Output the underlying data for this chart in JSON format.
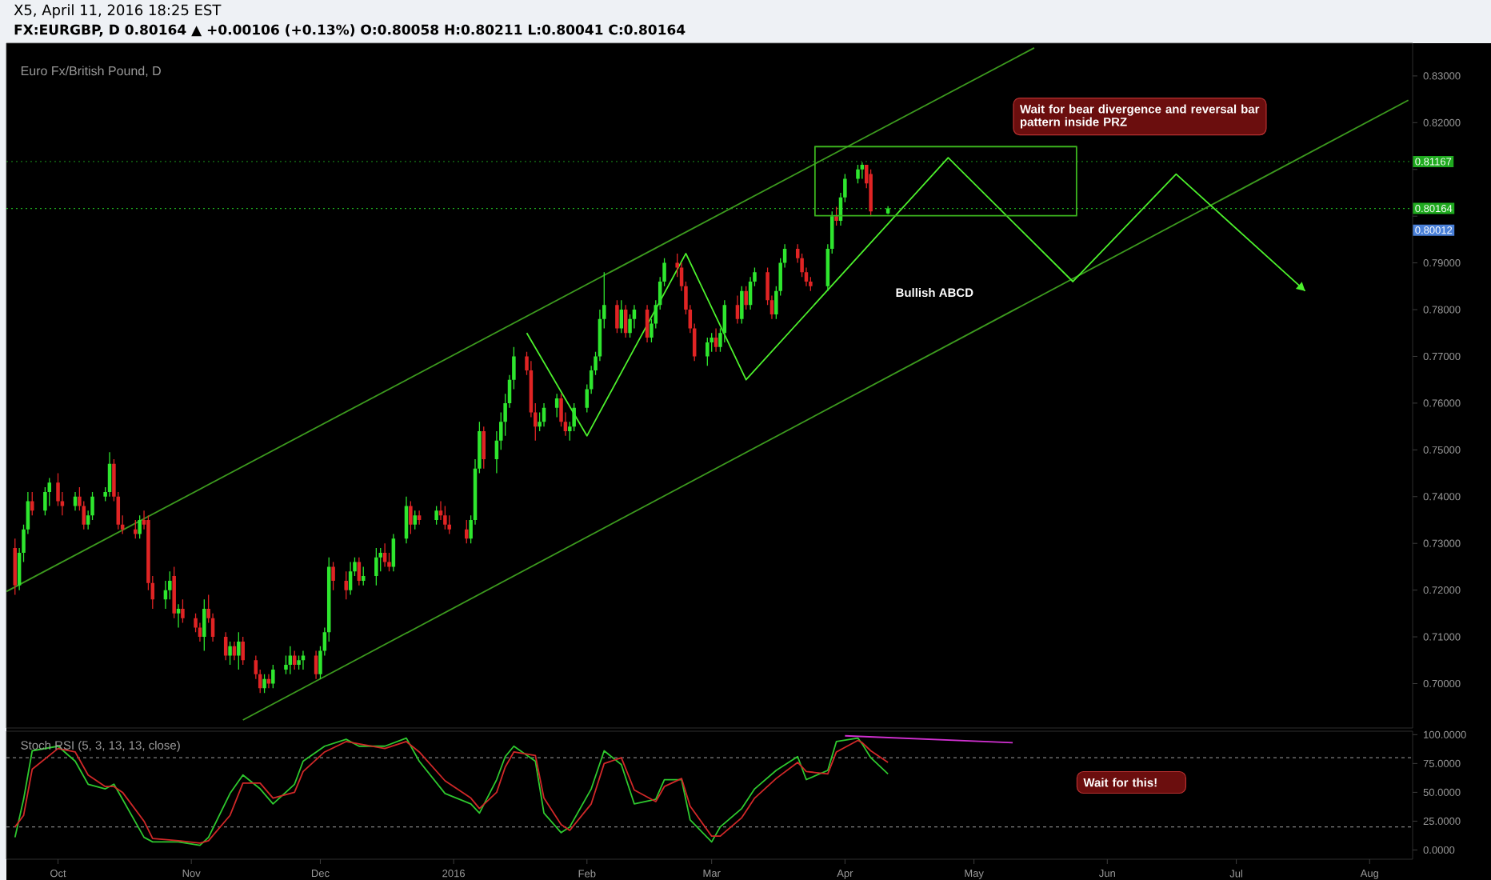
{
  "chart_data": [
    {
      "type": "candlestick",
      "title": "X5, April 11, 2016 18:25 EST",
      "subtitle": "FX:EURGBP, D  0.80164 ▲ +0.00106 (+0.13%) O:0.80058 H:0.80211 L:0.80041 C:0.80164",
      "annotations": [
        "Euro Fx/British Pound, D",
        "Wait for bear divergence and reversal bar pattern inside PRZ",
        "Bullish ABCD",
        "0.80012"
      ],
      "x": [
        "2015-09-21",
        "2015-09-22",
        "2015-09-23",
        "2015-09-24",
        "2015-09-25",
        "2015-09-28",
        "2015-09-29",
        "2015-10-01",
        "2015-10-02",
        "2015-10-05",
        "2015-10-06",
        "2015-10-07",
        "2015-10-08",
        "2015-10-09",
        "2015-10-12",
        "2015-10-13",
        "2015-10-14",
        "2015-10-15",
        "2015-10-16",
        "2015-10-19",
        "2015-10-20",
        "2015-10-21",
        "2015-10-22",
        "2015-10-23",
        "2015-10-26",
        "2015-10-27",
        "2015-10-28",
        "2015-10-29",
        "2015-10-30",
        "2015-11-02",
        "2015-11-03",
        "2015-11-04",
        "2015-11-05",
        "2015-11-06",
        "2015-11-09",
        "2015-11-10",
        "2015-11-11",
        "2015-11-12",
        "2015-11-13",
        "2015-11-16",
        "2015-11-17",
        "2015-11-18",
        "2015-11-19",
        "2015-11-20",
        "2015-11-23",
        "2015-11-24",
        "2015-11-25",
        "2015-11-26",
        "2015-11-27",
        "2015-11-30",
        "2015-12-01",
        "2015-12-02",
        "2015-12-03",
        "2015-12-04",
        "2015-12-07",
        "2015-12-08",
        "2015-12-09",
        "2015-12-10",
        "2015-12-11",
        "2015-12-14",
        "2015-12-15",
        "2015-12-16",
        "2015-12-17",
        "2015-12-18",
        "2015-12-21",
        "2015-12-22",
        "2015-12-23",
        "2015-12-24",
        "2015-12-28",
        "2015-12-29",
        "2015-12-30",
        "2015-12-31",
        "2016-01-04",
        "2016-01-05",
        "2016-01-06",
        "2016-01-07",
        "2016-01-08",
        "2016-01-11",
        "2016-01-12",
        "2016-01-13",
        "2016-01-14",
        "2016-01-15",
        "2016-01-18",
        "2016-01-19",
        "2016-01-20",
        "2016-01-21",
        "2016-01-22",
        "2016-01-25",
        "2016-01-26",
        "2016-01-27",
        "2016-01-28",
        "2016-01-29",
        "2016-02-01",
        "2016-02-02",
        "2016-02-03",
        "2016-02-04",
        "2016-02-05",
        "2016-02-08",
        "2016-02-09",
        "2016-02-10",
        "2016-02-11",
        "2016-02-12",
        "2016-02-15",
        "2016-02-16",
        "2016-02-17",
        "2016-02-18",
        "2016-02-19",
        "2016-02-22",
        "2016-02-23",
        "2016-02-24",
        "2016-02-25",
        "2016-02-26",
        "2016-02-29",
        "2016-03-01",
        "2016-03-02",
        "2016-03-03",
        "2016-03-04",
        "2016-03-07",
        "2016-03-08",
        "2016-03-09",
        "2016-03-10",
        "2016-03-11",
        "2016-03-14",
        "2016-03-15",
        "2016-03-16",
        "2016-03-17",
        "2016-03-18",
        "2016-03-21",
        "2016-03-22",
        "2016-03-23",
        "2016-03-24",
        "2016-03-28",
        "2016-03-29",
        "2016-03-30",
        "2016-03-31",
        "2016-04-01",
        "2016-04-04",
        "2016-04-05",
        "2016-04-06",
        "2016-04-07",
        "2016-04-11"
      ],
      "ohlc": [
        [
          0.729,
          0.731,
          0.719,
          0.721
        ],
        [
          0.721,
          0.729,
          0.72,
          0.728
        ],
        [
          0.728,
          0.734,
          0.726,
          0.733
        ],
        [
          0.733,
          0.741,
          0.732,
          0.739
        ],
        [
          0.739,
          0.741,
          0.736,
          0.737
        ],
        [
          0.737,
          0.742,
          0.736,
          0.741
        ],
        [
          0.741,
          0.744,
          0.738,
          0.743
        ],
        [
          0.743,
          0.745,
          0.738,
          0.739
        ],
        [
          0.739,
          0.741,
          0.736,
          0.738
        ],
        [
          0.738,
          0.741,
          0.737,
          0.74
        ],
        [
          0.74,
          0.742,
          0.737,
          0.738
        ],
        [
          0.738,
          0.739,
          0.733,
          0.734
        ],
        [
          0.734,
          0.737,
          0.733,
          0.736
        ],
        [
          0.736,
          0.741,
          0.735,
          0.74
        ],
        [
          0.74,
          0.742,
          0.739,
          0.741
        ],
        [
          0.741,
          0.7495,
          0.74,
          0.747
        ],
        [
          0.747,
          0.748,
          0.739,
          0.74
        ],
        [
          0.74,
          0.741,
          0.733,
          0.734
        ],
        [
          0.734,
          0.736,
          0.732,
          0.733
        ],
        [
          0.733,
          0.735,
          0.731,
          0.732
        ],
        [
          0.732,
          0.736,
          0.731,
          0.735
        ],
        [
          0.735,
          0.737,
          0.733,
          0.734
        ],
        [
          0.735,
          0.736,
          0.72,
          0.7215
        ],
        [
          0.7215,
          0.723,
          0.716,
          0.718
        ],
        [
          0.718,
          0.722,
          0.716,
          0.72
        ],
        [
          0.72,
          0.724,
          0.718,
          0.722
        ],
        [
          0.723,
          0.725,
          0.714,
          0.715
        ],
        [
          0.715,
          0.717,
          0.712,
          0.716
        ],
        [
          0.716,
          0.718,
          0.713,
          0.714
        ],
        [
          0.714,
          0.715,
          0.711,
          0.712
        ],
        [
          0.712,
          0.713,
          0.709,
          0.71
        ],
        [
          0.71,
          0.718,
          0.707,
          0.716
        ],
        [
          0.716,
          0.719,
          0.713,
          0.714
        ],
        [
          0.714,
          0.715,
          0.709,
          0.71
        ],
        [
          0.71,
          0.711,
          0.705,
          0.706
        ],
        [
          0.706,
          0.709,
          0.704,
          0.708
        ],
        [
          0.708,
          0.709,
          0.705,
          0.706
        ],
        [
          0.706,
          0.711,
          0.703,
          0.709
        ],
        [
          0.709,
          0.71,
          0.704,
          0.705
        ],
        [
          0.705,
          0.706,
          0.701,
          0.702
        ],
        [
          0.702,
          0.703,
          0.698,
          0.699
        ],
        [
          0.699,
          0.702,
          0.698,
          0.701
        ],
        [
          0.701,
          0.702,
          0.699,
          0.7
        ],
        [
          0.7,
          0.704,
          0.699,
          0.703
        ],
        [
          0.703,
          0.706,
          0.702,
          0.704
        ],
        [
          0.704,
          0.708,
          0.702,
          0.706
        ],
        [
          0.706,
          0.707,
          0.703,
          0.704
        ],
        [
          0.704,
          0.706,
          0.703,
          0.705
        ],
        [
          0.705,
          0.707,
          0.703,
          0.706
        ],
        [
          0.706,
          0.707,
          0.701,
          0.702
        ],
        [
          0.702,
          0.708,
          0.701,
          0.707
        ],
        [
          0.707,
          0.712,
          0.706,
          0.711
        ],
        [
          0.711,
          0.727,
          0.709,
          0.725
        ],
        [
          0.725,
          0.726,
          0.72,
          0.722
        ],
        [
          0.722,
          0.724,
          0.718,
          0.72
        ],
        [
          0.72,
          0.726,
          0.719,
          0.724
        ],
        [
          0.724,
          0.727,
          0.723,
          0.726
        ],
        [
          0.726,
          0.727,
          0.721,
          0.722
        ],
        [
          0.722,
          0.725,
          0.721,
          0.723
        ],
        [
          0.723,
          0.729,
          0.721,
          0.727
        ],
        [
          0.727,
          0.729,
          0.724,
          0.728
        ],
        [
          0.728,
          0.73,
          0.725,
          0.726
        ],
        [
          0.726,
          0.728,
          0.724,
          0.725
        ],
        [
          0.725,
          0.732,
          0.724,
          0.731
        ],
        [
          0.731,
          0.74,
          0.73,
          0.738
        ],
        [
          0.738,
          0.739,
          0.732,
          0.734
        ],
        [
          0.734,
          0.737,
          0.733,
          0.736
        ],
        [
          0.736,
          0.737,
          0.734,
          0.735
        ],
        [
          0.735,
          0.738,
          0.734,
          0.737
        ],
        [
          0.737,
          0.739,
          0.735,
          0.736
        ],
        [
          0.736,
          0.738,
          0.733,
          0.734
        ],
        [
          0.734,
          0.736,
          0.732,
          0.733
        ],
        [
          0.733,
          0.735,
          0.73,
          0.731
        ],
        [
          0.731,
          0.736,
          0.73,
          0.735
        ],
        [
          0.735,
          0.748,
          0.734,
          0.746
        ],
        [
          0.746,
          0.756,
          0.745,
          0.754
        ],
        [
          0.754,
          0.755,
          0.746,
          0.748
        ],
        [
          0.748,
          0.754,
          0.745,
          0.752
        ],
        [
          0.752,
          0.758,
          0.75,
          0.756
        ],
        [
          0.756,
          0.762,
          0.753,
          0.76
        ],
        [
          0.76,
          0.766,
          0.759,
          0.765
        ],
        [
          0.765,
          0.772,
          0.763,
          0.77
        ],
        [
          0.77,
          0.771,
          0.766,
          0.767
        ],
        [
          0.767,
          0.769,
          0.757,
          0.758
        ],
        [
          0.758,
          0.76,
          0.752,
          0.755
        ],
        [
          0.755,
          0.758,
          0.754,
          0.756
        ],
        [
          0.756,
          0.76,
          0.755,
          0.759
        ],
        [
          0.759,
          0.762,
          0.757,
          0.761
        ],
        [
          0.761,
          0.762,
          0.755,
          0.756
        ],
        [
          0.756,
          0.758,
          0.753,
          0.754
        ],
        [
          0.754,
          0.756,
          0.752,
          0.755
        ],
        [
          0.755,
          0.76,
          0.754,
          0.759
        ],
        [
          0.759,
          0.764,
          0.758,
          0.763
        ],
        [
          0.763,
          0.768,
          0.762,
          0.767
        ],
        [
          0.767,
          0.771,
          0.766,
          0.77
        ],
        [
          0.77,
          0.78,
          0.769,
          0.778
        ],
        [
          0.778,
          0.788,
          0.776,
          0.781
        ],
        [
          0.781,
          0.782,
          0.775,
          0.776
        ],
        [
          0.776,
          0.782,
          0.775,
          0.78
        ],
        [
          0.78,
          0.781,
          0.774,
          0.775
        ],
        [
          0.775,
          0.779,
          0.774,
          0.778
        ],
        [
          0.778,
          0.781,
          0.776,
          0.78
        ],
        [
          0.78,
          0.781,
          0.773,
          0.774
        ],
        [
          0.774,
          0.778,
          0.773,
          0.777
        ],
        [
          0.777,
          0.782,
          0.776,
          0.781
        ],
        [
          0.781,
          0.787,
          0.78,
          0.786
        ],
        [
          0.786,
          0.791,
          0.785,
          0.79
        ],
        [
          0.79,
          0.792,
          0.787,
          0.789
        ],
        [
          0.789,
          0.79,
          0.784,
          0.785
        ],
        [
          0.785,
          0.786,
          0.779,
          0.78
        ],
        [
          0.78,
          0.781,
          0.775,
          0.776
        ],
        [
          0.776,
          0.777,
          0.769,
          0.77
        ],
        [
          0.77,
          0.774,
          0.768,
          0.773
        ],
        [
          0.773,
          0.775,
          0.771,
          0.774
        ],
        [
          0.774,
          0.776,
          0.771,
          0.772
        ],
        [
          0.772,
          0.776,
          0.771,
          0.775
        ],
        [
          0.775,
          0.782,
          0.773,
          0.781
        ],
        [
          0.781,
          0.783,
          0.777,
          0.778
        ],
        [
          0.778,
          0.785,
          0.777,
          0.784
        ],
        [
          0.784,
          0.785,
          0.78,
          0.781
        ],
        [
          0.781,
          0.787,
          0.78,
          0.786
        ],
        [
          0.786,
          0.789,
          0.785,
          0.788
        ],
        [
          0.788,
          0.789,
          0.781,
          0.782
        ],
        [
          0.782,
          0.783,
          0.778,
          0.779
        ],
        [
          0.779,
          0.785,
          0.778,
          0.784
        ],
        [
          0.784,
          0.791,
          0.783,
          0.79
        ],
        [
          0.79,
          0.794,
          0.789,
          0.793
        ],
        [
          0.793,
          0.794,
          0.79,
          0.791
        ],
        [
          0.791,
          0.792,
          0.787,
          0.788
        ],
        [
          0.788,
          0.789,
          0.785,
          0.786
        ],
        [
          0.786,
          0.787,
          0.784,
          0.785
        ],
        [
          0.785,
          0.794,
          0.784,
          0.793
        ],
        [
          0.793,
          0.801,
          0.792,
          0.8
        ],
        [
          0.8,
          0.802,
          0.798,
          0.799
        ],
        [
          0.799,
          0.805,
          0.798,
          0.804
        ],
        [
          0.804,
          0.809,
          0.803,
          0.808
        ],
        [
          0.808,
          0.811,
          0.807,
          0.81
        ],
        [
          0.81,
          0.8115,
          0.808,
          0.811
        ],
        [
          0.811,
          0.811,
          0.806,
          0.807
        ],
        [
          0.809,
          0.81,
          0.8,
          0.801
        ],
        [
          0.80058,
          0.80211,
          0.80041,
          0.80164
        ]
      ],
      "colors": [
        "#e02424",
        "#2ee62e",
        "#2ee62e",
        "#2ee62e",
        "#e02424",
        "#2ee62e",
        "#2ee62e",
        "#e02424",
        "#e02424",
        "#2ee62e",
        "#e02424",
        "#e02424",
        "#2ee62e",
        "#2ee62e",
        "#2ee62e",
        "#2ee62e",
        "#e02424",
        "#e02424",
        "#e02424",
        "#e02424",
        "#2ee62e",
        "#e02424",
        "#e02424",
        "#e02424",
        "#2ee62e",
        "#2ee62e",
        "#e02424",
        "#2ee62e",
        "#e02424",
        "#e02424",
        "#e02424",
        "#2ee62e",
        "#e02424",
        "#e02424",
        "#e02424",
        "#2ee62e",
        "#e02424",
        "#2ee62e",
        "#e02424",
        "#e02424",
        "#e02424",
        "#2ee62e",
        "#e02424",
        "#2ee62e",
        "#2ee62e",
        "#2ee62e",
        "#e02424",
        "#2ee62e",
        "#2ee62e",
        "#e02424",
        "#2ee62e",
        "#2ee62e",
        "#2ee62e",
        "#e02424",
        "#e02424",
        "#2ee62e",
        "#2ee62e",
        "#e02424",
        "#2ee62e",
        "#2ee62e",
        "#2ee62e",
        "#e02424",
        "#e02424",
        "#2ee62e",
        "#2ee62e",
        "#e02424",
        "#2ee62e",
        "#e02424",
        "#2ee62e",
        "#e02424",
        "#e02424",
        "#e02424",
        "#e02424",
        "#2ee62e",
        "#2ee62e",
        "#2ee62e",
        "#e02424",
        "#2ee62e",
        "#2ee62e",
        "#2ee62e",
        "#2ee62e",
        "#2ee62e",
        "#e02424",
        "#e02424",
        "#e02424",
        "#2ee62e",
        "#2ee62e",
        "#2ee62e",
        "#e02424",
        "#e02424",
        "#2ee62e",
        "#2ee62e",
        "#2ee62e",
        "#2ee62e",
        "#2ee62e",
        "#2ee62e",
        "#2ee62e",
        "#e02424",
        "#2ee62e",
        "#e02424",
        "#2ee62e",
        "#2ee62e",
        "#e02424",
        "#2ee62e",
        "#2ee62e",
        "#2ee62e",
        "#2ee62e",
        "#e02424",
        "#e02424",
        "#e02424",
        "#e02424",
        "#e02424",
        "#2ee62e",
        "#2ee62e",
        "#e02424",
        "#2ee62e",
        "#2ee62e",
        "#e02424",
        "#2ee62e",
        "#e02424",
        "#2ee62e",
        "#2ee62e",
        "#e02424",
        "#e02424",
        "#2ee62e",
        "#2ee62e",
        "#2ee62e",
        "#e02424",
        "#e02424",
        "#e02424",
        "#e02424",
        "#2ee62e",
        "#2ee62e",
        "#e02424",
        "#2ee62e",
        "#2ee62e",
        "#2ee62e",
        "#2ee62e",
        "#e02424",
        "#e02424",
        "#2ee62e"
      ],
      "series": [
        {
          "type": "line",
          "color": "#3c9a1e",
          "x": [
            "2015-09-19",
            "2016-05-15"
          ],
          "values": [
            0.7197,
            0.836
          ]
        },
        {
          "type": "line",
          "color": "#3c9a1e",
          "x": [
            "2015-11-13",
            "2016-08-10"
          ],
          "values": [
            0.6922,
            0.8248
          ]
        },
        {
          "type": "line",
          "color": "#4cf02c",
          "x": [
            "2016-01-18",
            "2016-02-01",
            "2016-02-24",
            "2016-03-09",
            "2016-04-25",
            "2016-05-24",
            "2016-06-17",
            "2016-07-17"
          ],
          "values": [
            0.775,
            0.753,
            0.792,
            0.765,
            0.8125,
            0.786,
            0.809,
            0.784
          ]
        }
      ],
      "xlim": [
        "2015-09-19",
        "2016-08-11"
      ],
      "ylim": [
        0.6905,
        0.837
      ],
      "yticks": [
        {
          "value": 0.7,
          "label": "0.70000"
        },
        {
          "value": 0.71,
          "label": "0.71000"
        },
        {
          "value": 0.72,
          "label": "0.72000"
        },
        {
          "value": 0.73,
          "label": "0.73000"
        },
        {
          "value": 0.74,
          "label": "0.74000"
        },
        {
          "value": 0.75,
          "label": "0.75000"
        },
        {
          "value": 0.76,
          "label": "0.76000"
        },
        {
          "value": 0.77,
          "label": "0.77000"
        },
        {
          "value": 0.78,
          "label": "0.78000"
        },
        {
          "value": 0.79,
          "label": "0.79000"
        },
        {
          "value": 0.8,
          "label": null
        },
        {
          "value": 0.81,
          "label": null
        },
        {
          "value": 0.82,
          "label": "0.82000"
        },
        {
          "value": 0.83,
          "label": "0.83000"
        }
      ],
      "ref_lines": [
        {
          "axis": "y",
          "value": 0.81167,
          "label": "0.81167",
          "color": "#1faa1f",
          "line_style": "dotted"
        },
        {
          "axis": "y",
          "value": 0.80164,
          "label": "0.80164",
          "color": "#1faa1f",
          "line_style": "dotted"
        }
      ],
      "tick_labels": "y"
    },
    {
      "type": "line",
      "title": "Stoch RSI (5, 3, 13, 13, close)",
      "annotations": [
        "Wait for this!"
      ],
      "x": [
        "2015-09-21",
        "2015-09-23",
        "2015-09-25",
        "2015-10-01",
        "2015-10-05",
        "2015-10-08",
        "2015-10-12",
        "2015-10-14",
        "2015-10-16",
        "2015-10-21",
        "2015-10-23",
        "2015-10-29",
        "2015-11-03",
        "2015-11-05",
        "2015-11-10",
        "2015-11-13",
        "2015-11-17",
        "2015-11-20",
        "2015-11-25",
        "2015-11-27",
        "2015-12-02",
        "2015-12-07",
        "2015-12-10",
        "2015-12-16",
        "2015-12-21",
        "2015-12-24",
        "2015-12-30",
        "2016-01-05",
        "2016-01-07",
        "2016-01-11",
        "2016-01-13",
        "2016-01-15",
        "2016-01-20",
        "2016-01-22",
        "2016-01-26",
        "2016-01-28",
        "2016-02-02",
        "2016-02-05",
        "2016-02-09",
        "2016-02-12",
        "2016-02-17",
        "2016-02-19",
        "2016-02-23",
        "2016-02-25",
        "2016-03-01",
        "2016-03-03",
        "2016-03-08",
        "2016-03-11",
        "2016-03-16",
        "2016-03-21",
        "2016-03-23",
        "2016-03-28",
        "2016-03-30",
        "2016-04-04",
        "2016-04-05",
        "2016-04-07",
        "2016-04-11"
      ],
      "series": [
        {
          "color": "#2ec82e",
          "values": [
            11,
            44,
            86,
            90,
            77,
            57,
            53,
            57,
            44,
            11,
            7,
            7,
            4,
            11,
            49,
            65,
            53,
            40,
            57,
            77,
            90,
            96,
            90,
            90,
            97,
            77,
            49,
            40,
            32,
            61,
            81,
            90,
            77,
            32,
            15,
            20,
            53,
            86,
            74,
            40,
            44,
            61,
            61,
            26,
            7,
            20,
            36,
            53,
            69,
            81,
            61,
            69,
            94,
            97,
            92,
            80,
            66
          ]
        },
        {
          "color": "#d02828",
          "values": [
            20,
            30,
            70,
            88,
            85,
            65,
            55,
            55,
            50,
            25,
            10,
            8,
            6,
            8,
            30,
            58,
            58,
            45,
            50,
            68,
            85,
            94,
            92,
            88,
            94,
            85,
            60,
            45,
            36,
            50,
            72,
            85,
            82,
            45,
            22,
            17,
            40,
            75,
            80,
            52,
            42,
            55,
            62,
            38,
            12,
            12,
            28,
            45,
            62,
            76,
            68,
            66,
            85,
            95,
            93,
            86,
            76
          ]
        },
        {
          "color": "#d030d0",
          "x": [
            "2016-04-01",
            "2016-05-10"
          ],
          "values": [
            99,
            93
          ]
        }
      ],
      "xlim": [
        "2015-09-19",
        "2016-08-11"
      ],
      "ylim": [
        -8,
        103
      ],
      "xticks": [
        {
          "value": "2015-10-01",
          "label": "Oct"
        },
        {
          "value": "2015-11-01",
          "label": "Nov"
        },
        {
          "value": "2015-12-01",
          "label": "Dec"
        },
        {
          "value": "2016-01-01",
          "label": "2016"
        },
        {
          "value": "2016-02-01",
          "label": "Feb"
        },
        {
          "value": "2016-03-01",
          "label": "Mar"
        },
        {
          "value": "2016-04-01",
          "label": "Apr"
        },
        {
          "value": "2016-05-01",
          "label": "May"
        },
        {
          "value": "2016-06-01",
          "label": "Jun"
        },
        {
          "value": "2016-07-01",
          "label": "Jul"
        },
        {
          "value": "2016-08-01",
          "label": "Aug"
        }
      ],
      "yticks": [
        {
          "value": 0,
          "label": "0.0000"
        },
        {
          "value": 25,
          "label": "25.0000"
        },
        {
          "value": 50,
          "label": "50.0000"
        },
        {
          "value": 75,
          "label": "75.0000"
        },
        {
          "value": 100,
          "label": "100.0000"
        }
      ],
      "ref_lines": [
        {
          "axis": "y",
          "value": 80,
          "color": "#808080",
          "line_style": "dashed"
        },
        {
          "axis": "y",
          "value": 20,
          "color": "#808080",
          "line_style": "dashed"
        }
      ]
    }
  ]
}
